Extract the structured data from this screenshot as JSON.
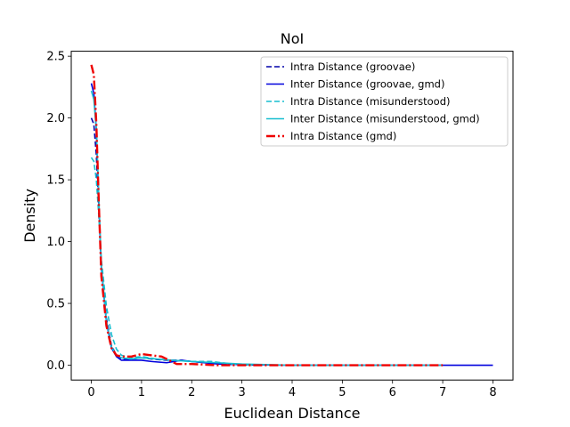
{
  "chart_data": {
    "type": "line",
    "title": "NoI",
    "xlabel": "Euclidean Distance",
    "ylabel": "Density",
    "xlim": [
      -0.4,
      8.4
    ],
    "ylim": [
      -0.12,
      2.54
    ],
    "xticks": [
      0,
      1,
      2,
      3,
      4,
      5,
      6,
      7,
      8
    ],
    "yticks": [
      0.0,
      0.5,
      1.0,
      1.5,
      2.0,
      2.5
    ],
    "xtick_labels": [
      "0",
      "1",
      "2",
      "3",
      "4",
      "5",
      "6",
      "7",
      "8"
    ],
    "ytick_labels": [
      "0.0",
      "0.5",
      "1.0",
      "1.5",
      "2.0",
      "2.5"
    ],
    "grid": false,
    "legend_position": "top-right",
    "series": [
      {
        "name": "Intra Distance (groovae)",
        "color": "#0000aa",
        "style": "dashed",
        "x": [
          0,
          0.05,
          0.1,
          0.15,
          0.2,
          0.3,
          0.4,
          0.5,
          0.6,
          0.8,
          1.0,
          1.2,
          1.5,
          1.8,
          2.0,
          2.3,
          2.6,
          3.0,
          3.4
        ],
        "y": [
          2.0,
          1.95,
          1.7,
          1.25,
          0.8,
          0.38,
          0.16,
          0.08,
          0.05,
          0.05,
          0.06,
          0.05,
          0.04,
          0.04,
          0.03,
          0.02,
          0.01,
          0.005,
          0.0
        ]
      },
      {
        "name": "Inter Distance (groovae, gmd)",
        "color": "#0000dd",
        "style": "solid",
        "x": [
          0,
          0.05,
          0.1,
          0.15,
          0.2,
          0.3,
          0.4,
          0.5,
          0.6,
          0.8,
          1.0,
          1.2,
          1.5,
          1.8,
          2.0,
          2.5,
          3.0,
          4.0,
          5.0,
          6.0,
          7.0,
          8.0
        ],
        "y": [
          2.28,
          2.2,
          1.9,
          1.3,
          0.78,
          0.35,
          0.14,
          0.07,
          0.04,
          0.04,
          0.04,
          0.03,
          0.02,
          0.04,
          0.03,
          0.01,
          0.005,
          0.0,
          0.0,
          0.0,
          0.0,
          0.0
        ]
      },
      {
        "name": "Intra Distance (misunderstood)",
        "color": "#17becf",
        "style": "dashed",
        "x": [
          0,
          0.05,
          0.1,
          0.15,
          0.2,
          0.3,
          0.4,
          0.5,
          0.6,
          0.8,
          1.0,
          1.3,
          1.6,
          2.0,
          2.4,
          2.8,
          3.2
        ],
        "y": [
          1.68,
          1.65,
          1.5,
          1.2,
          0.85,
          0.48,
          0.25,
          0.13,
          0.08,
          0.06,
          0.07,
          0.05,
          0.04,
          0.03,
          0.03,
          0.01,
          0.0
        ]
      },
      {
        "name": "Inter Distance (misunderstood, gmd)",
        "color": "#17becf",
        "style": "solid",
        "x": [
          0,
          0.05,
          0.1,
          0.15,
          0.2,
          0.3,
          0.4,
          0.5,
          0.6,
          0.8,
          1.0,
          1.3,
          1.6,
          2.0,
          2.5,
          3.0,
          4.0,
          5.0,
          6.0,
          7.0
        ],
        "y": [
          2.22,
          2.15,
          1.9,
          1.35,
          0.8,
          0.36,
          0.15,
          0.08,
          0.06,
          0.05,
          0.06,
          0.05,
          0.04,
          0.03,
          0.02,
          0.01,
          0.0,
          0.0,
          0.0,
          0.0
        ]
      },
      {
        "name": "Intra Distance (gmd)",
        "color": "#ee0000",
        "style": "dashdot",
        "x": [
          0,
          0.05,
          0.1,
          0.15,
          0.2,
          0.3,
          0.4,
          0.5,
          0.6,
          0.8,
          1.0,
          1.2,
          1.4,
          1.7,
          2.0,
          2.5,
          3.0,
          4.0,
          5.0,
          6.0,
          7.0
        ],
        "y": [
          2.43,
          2.35,
          1.95,
          1.3,
          0.72,
          0.32,
          0.14,
          0.08,
          0.07,
          0.07,
          0.09,
          0.08,
          0.07,
          0.01,
          0.01,
          0.0,
          0.0,
          0.0,
          0.0,
          0.0,
          0.0
        ]
      }
    ]
  }
}
